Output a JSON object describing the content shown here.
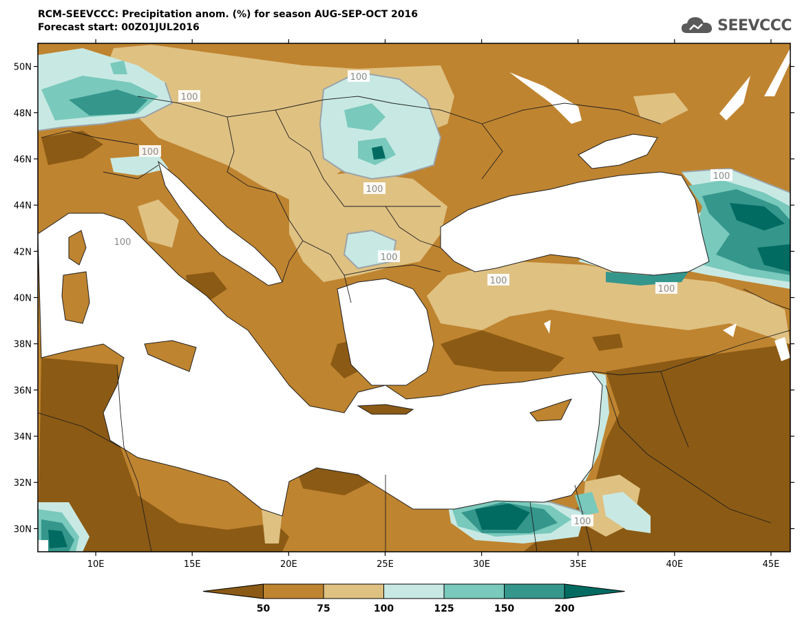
{
  "header": {
    "title": "RCM-SEEVCCC: Precipitation anom. (%) for season AUG-SEP-OCT 2016",
    "subtitle": "Forecast start: 00Z01JUL2016"
  },
  "logo": {
    "text": "SEEVCCC",
    "icon": "cloud-icon"
  },
  "map": {
    "lon_range": [
      7,
      46
    ],
    "lat_range": [
      29,
      51
    ],
    "lat_ticks": [
      "30N",
      "32N",
      "34N",
      "36N",
      "38N",
      "40N",
      "42N",
      "44N",
      "46N",
      "48N",
      "50N"
    ],
    "lon_ticks": [
      "10E",
      "15E",
      "20E",
      "25E",
      "30E",
      "35E",
      "40E",
      "45E"
    ],
    "contour_labels": [
      "100",
      "100",
      "100",
      "100",
      "100",
      "100",
      "100",
      "100",
      "100",
      "100"
    ]
  },
  "colorbar": {
    "labels": [
      "50",
      "75",
      "100",
      "125",
      "150",
      "200"
    ],
    "colors": [
      "#8b5a14",
      "#bf8430",
      "#dfc182",
      "#c8e9e3",
      "#79c9bc",
      "#35968c",
      "#016b61"
    ]
  },
  "colors": {
    "sea": "#ffffff",
    "contour_line": "#9aa3a8",
    "border": "#1e1e1e"
  }
}
